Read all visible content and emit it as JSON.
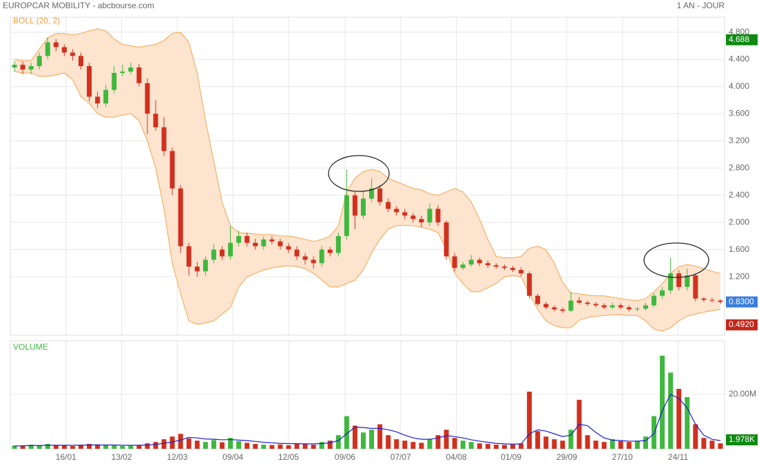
{
  "header": {
    "title": "EUROPCAR MOBILITY - abcbourse.com",
    "period": "1 AN - JOUR"
  },
  "chart_data": [
    {
      "type": "candlestick",
      "legend": "BOLL (20, 2)",
      "up_color": "#3fb83f",
      "down_color": "#d0311f",
      "open": [
        4.28,
        4.32,
        4.25,
        4.3,
        4.45,
        4.65,
        4.58,
        4.5,
        4.45,
        4.3,
        3.85,
        3.75,
        3.95,
        4.2,
        4.22,
        4.28,
        4.05,
        3.6,
        3.4,
        3.05,
        2.5,
        1.65,
        1.35,
        1.28,
        1.45,
        1.6,
        1.5,
        1.7,
        1.8,
        1.7,
        1.65,
        1.75,
        1.72,
        1.65,
        1.6,
        1.5,
        1.45,
        1.4,
        1.6,
        1.55,
        1.8,
        2.4,
        2.1,
        2.35,
        2.5,
        2.3,
        2.2,
        2.15,
        2.1,
        2.05,
        2.0,
        2.2,
        2.0,
        1.5,
        1.33,
        1.38,
        1.45,
        1.4,
        1.37,
        1.35,
        1.33,
        1.3,
        1.25,
        0.92,
        0.8,
        0.75,
        0.72,
        0.7,
        0.85,
        0.82,
        0.8,
        0.78,
        0.75,
        0.78,
        0.75,
        0.72,
        0.73,
        0.78,
        0.92,
        1.0,
        1.25,
        1.05,
        1.22,
        0.88,
        0.86,
        0.85
      ],
      "high": [
        4.37,
        4.37,
        4.35,
        4.5,
        4.72,
        4.7,
        4.62,
        4.55,
        4.5,
        4.35,
        3.92,
        4.02,
        4.3,
        4.32,
        4.35,
        4.33,
        4.12,
        3.8,
        3.55,
        3.1,
        2.55,
        1.7,
        1.42,
        1.5,
        1.68,
        1.65,
        1.95,
        1.88,
        1.85,
        1.76,
        1.8,
        1.8,
        1.76,
        1.7,
        1.65,
        1.55,
        1.5,
        1.65,
        1.64,
        1.85,
        2.78,
        2.45,
        2.45,
        2.65,
        2.55,
        2.35,
        2.24,
        2.2,
        2.14,
        2.1,
        2.28,
        2.25,
        2.03,
        1.55,
        1.42,
        1.52,
        1.48,
        1.44,
        1.4,
        1.38,
        1.36,
        1.34,
        1.28,
        0.95,
        0.83,
        0.78,
        0.75,
        0.98,
        0.9,
        0.85,
        0.83,
        0.81,
        0.82,
        0.81,
        0.78,
        0.76,
        0.82,
        0.96,
        1.05,
        1.48,
        1.3,
        1.32,
        1.25,
        0.9,
        0.89,
        0.87
      ],
      "low": [
        4.22,
        4.18,
        4.18,
        4.25,
        4.4,
        4.52,
        4.45,
        4.38,
        4.25,
        3.78,
        3.68,
        3.7,
        3.9,
        4.15,
        4.18,
        4.0,
        3.3,
        3.35,
        2.98,
        2.4,
        1.55,
        1.22,
        1.2,
        1.22,
        1.4,
        1.45,
        1.45,
        1.65,
        1.65,
        1.6,
        1.6,
        1.68,
        1.6,
        1.55,
        1.45,
        1.38,
        1.32,
        1.35,
        1.5,
        1.5,
        1.75,
        1.9,
        2.05,
        2.3,
        2.25,
        2.15,
        2.1,
        2.05,
        2.0,
        1.93,
        1.95,
        1.95,
        1.45,
        1.28,
        1.3,
        1.35,
        1.36,
        1.33,
        1.32,
        1.3,
        1.27,
        1.21,
        0.88,
        0.77,
        0.72,
        0.69,
        0.67,
        0.68,
        0.79,
        0.77,
        0.75,
        0.72,
        0.72,
        0.72,
        0.69,
        0.69,
        0.7,
        0.75,
        0.88,
        0.95,
        1.0,
        1.0,
        0.84,
        0.83,
        0.82,
        0.8
      ],
      "close": [
        4.32,
        4.25,
        4.3,
        4.45,
        4.65,
        4.58,
        4.5,
        4.45,
        4.3,
        3.85,
        3.75,
        3.95,
        4.2,
        4.22,
        4.28,
        4.05,
        3.6,
        3.4,
        3.05,
        2.5,
        1.65,
        1.35,
        1.28,
        1.45,
        1.6,
        1.5,
        1.7,
        1.8,
        1.7,
        1.65,
        1.75,
        1.72,
        1.65,
        1.6,
        1.5,
        1.45,
        1.4,
        1.6,
        1.55,
        1.8,
        2.4,
        2.1,
        2.35,
        2.5,
        2.3,
        2.2,
        2.15,
        2.1,
        2.05,
        2.0,
        2.2,
        2.0,
        1.5,
        1.33,
        1.38,
        1.45,
        1.4,
        1.37,
        1.35,
        1.33,
        1.3,
        1.25,
        0.92,
        0.8,
        0.75,
        0.72,
        0.7,
        0.85,
        0.82,
        0.8,
        0.78,
        0.75,
        0.78,
        0.75,
        0.72,
        0.73,
        0.78,
        0.92,
        1.0,
        1.25,
        1.05,
        1.22,
        0.88,
        0.86,
        0.85,
        0.83
      ],
      "bands": {
        "color": "#f3a44c",
        "fill": "#fde4cf",
        "upper": [
          4.4,
          4.38,
          4.38,
          4.55,
          4.72,
          4.78,
          4.78,
          4.76,
          4.78,
          4.82,
          4.85,
          4.82,
          4.7,
          4.62,
          4.6,
          4.58,
          4.6,
          4.62,
          4.68,
          4.78,
          4.8,
          4.65,
          4.2,
          3.5,
          2.9,
          2.3,
          1.95,
          1.85,
          1.84,
          1.83,
          1.82,
          1.82,
          1.8,
          1.8,
          1.78,
          1.75,
          1.72,
          1.75,
          1.8,
          1.95,
          2.45,
          2.65,
          2.75,
          2.78,
          2.75,
          2.65,
          2.6,
          2.55,
          2.5,
          2.48,
          2.42,
          2.4,
          2.45,
          2.5,
          2.45,
          2.3,
          2.05,
          1.75,
          1.5,
          1.48,
          1.48,
          1.5,
          1.62,
          1.65,
          1.6,
          1.4,
          1.12,
          0.96,
          0.95,
          0.93,
          0.92,
          0.92,
          0.9,
          0.88,
          0.86,
          0.85,
          0.88,
          0.98,
          1.1,
          1.25,
          1.35,
          1.38,
          1.36,
          1.32,
          1.28,
          1.25
        ],
        "lower": [
          4.22,
          4.2,
          4.2,
          4.15,
          4.15,
          4.17,
          4.2,
          4.1,
          3.85,
          3.75,
          3.6,
          3.55,
          3.55,
          3.58,
          3.6,
          3.5,
          3.2,
          2.8,
          2.2,
          1.4,
          0.95,
          0.55,
          0.5,
          0.52,
          0.55,
          0.65,
          0.75,
          1.05,
          1.2,
          1.25,
          1.3,
          1.33,
          1.35,
          1.36,
          1.35,
          1.32,
          1.25,
          1.15,
          1.05,
          1.05,
          1.1,
          1.15,
          1.3,
          1.55,
          1.75,
          1.9,
          1.95,
          1.96,
          1.95,
          1.93,
          1.9,
          1.85,
          1.6,
          1.25,
          1.1,
          0.98,
          0.98,
          1.04,
          1.1,
          1.2,
          1.22,
          1.2,
          0.95,
          0.72,
          0.55,
          0.48,
          0.45,
          0.45,
          0.56,
          0.6,
          0.62,
          0.63,
          0.64,
          0.64,
          0.63,
          0.63,
          0.55,
          0.43,
          0.4,
          0.45,
          0.55,
          0.62,
          0.65,
          0.68,
          0.7,
          0.72
        ]
      },
      "ylim": [
        0.34,
        5.02
      ],
      "yticks": [
        {
          "value": 1.2,
          "label": "1.200"
        },
        {
          "value": 1.6,
          "label": "1.600"
        },
        {
          "value": 2.0,
          "label": "2.000"
        },
        {
          "value": 2.4,
          "label": "2.400"
        },
        {
          "value": 2.8,
          "label": "2.800"
        },
        {
          "value": 3.2,
          "label": "3.200"
        },
        {
          "value": 3.6,
          "label": "3.600"
        },
        {
          "value": 4.0,
          "label": "4.000"
        },
        {
          "value": 4.4,
          "label": "4.400"
        },
        {
          "value": 4.8,
          "label": "4.800"
        }
      ],
      "xticks": [
        {
          "value": 6.2,
          "label": "16/01"
        },
        {
          "value": 12.9,
          "label": "13/02"
        },
        {
          "value": 19.6,
          "label": "12/03"
        },
        {
          "value": 26.3,
          "label": "09/04"
        },
        {
          "value": 33.0,
          "label": "12/05"
        },
        {
          "value": 39.8,
          "label": "09/06"
        },
        {
          "value": 46.5,
          "label": "07/07"
        },
        {
          "value": 53.2,
          "label": "04/08"
        },
        {
          "value": 59.8,
          "label": "01/09"
        },
        {
          "value": 66.5,
          "label": "29/09"
        },
        {
          "value": 73.2,
          "label": "27/10"
        },
        {
          "value": 79.9,
          "label": "24/11"
        }
      ],
      "badges": [
        {
          "value": 4.688,
          "color": "#0f8a12"
        },
        {
          "value": {
            "value": 0.83,
            "label": "0.8300"
          },
          "color": "#3b7ddd"
        },
        {
          "value": {
            "value": 0.492,
            "label": "0.4920"
          },
          "color": "#c4271c"
        }
      ]
    },
    {
      "type": "volume",
      "title": "VOLUME",
      "ma_color": "#1c1ccc",
      "values": [
        1.2,
        1.0,
        1.5,
        1.3,
        1.8,
        1.4,
        1.2,
        1.0,
        1.5,
        1.8,
        1.6,
        1.3,
        1.2,
        1.0,
        1.1,
        1.4,
        2.0,
        2.5,
        3.5,
        4.5,
        5.5,
        3.8,
        3.0,
        2.5,
        3.2,
        2.4,
        4.0,
        2.8,
        2.2,
        1.8,
        1.5,
        1.4,
        1.6,
        1.3,
        2.0,
        1.8,
        1.5,
        2.5,
        3.0,
        5.0,
        12.0,
        8.5,
        6.0,
        7.0,
        9.0,
        5.0,
        3.5,
        3.0,
        2.5,
        2.2,
        3.5,
        5.0,
        7.0,
        4.0,
        3.0,
        2.5,
        2.0,
        1.8,
        1.5,
        1.4,
        1.6,
        2.0,
        21.0,
        6.5,
        4.5,
        3.5,
        3.0,
        7.0,
        18.0,
        5.0,
        3.0,
        2.5,
        3.5,
        2.8,
        2.5,
        3.0,
        4.5,
        12.0,
        34.2,
        28.0,
        22.0,
        19.0,
        9.0,
        4.0,
        3.0,
        2.0
      ],
      "ma": [
        1.0,
        1.1,
        1.2,
        1.2,
        1.3,
        1.3,
        1.3,
        1.3,
        1.3,
        1.4,
        1.4,
        1.4,
        1.4,
        1.3,
        1.3,
        1.3,
        1.4,
        1.6,
        2.0,
        2.5,
        3.2,
        4.2,
        4.0,
        3.6,
        3.5,
        3.3,
        3.4,
        3.2,
        3.0,
        2.7,
        2.4,
        2.2,
        2.0,
        1.9,
        1.9,
        1.8,
        1.8,
        1.9,
        2.2,
        3.0,
        5.5,
        8.0,
        7.8,
        7.5,
        7.5,
        7.0,
        6.2,
        5.0,
        4.0,
        3.5,
        3.5,
        4.0,
        4.8,
        4.5,
        4.0,
        3.3,
        2.8,
        2.4,
        2.0,
        1.8,
        1.7,
        1.8,
        5.5,
        7.0,
        6.5,
        5.5,
        4.5,
        5.0,
        9.0,
        8.5,
        6.0,
        4.0,
        3.2,
        3.0,
        2.8,
        2.8,
        3.0,
        5.5,
        14.0,
        20.0,
        18.5,
        15.0,
        9.0,
        5.0,
        3.5,
        3.0
      ],
      "ylim": [
        0,
        39.7
      ],
      "yticks": [
        {
          "value": 20,
          "label": "20.00M"
        }
      ],
      "last_label": "1.978K",
      "badge_color": "#0f8a12"
    }
  ]
}
